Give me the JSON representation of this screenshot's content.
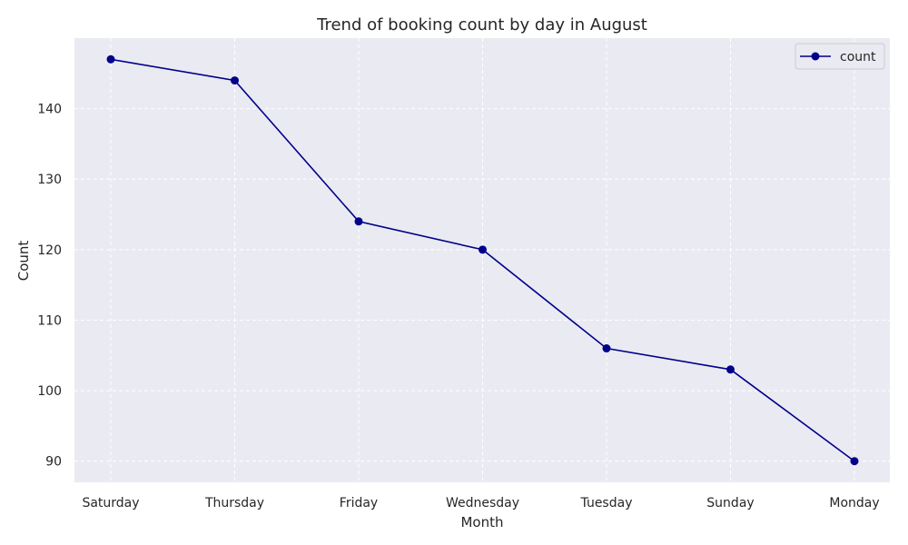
{
  "chart_data": {
    "type": "line",
    "title": "Trend of booking count by day in August",
    "xlabel": "Month",
    "ylabel": "Count",
    "categories": [
      "Saturday",
      "Thursday",
      "Friday",
      "Wednesday",
      "Tuesday",
      "Sunday",
      "Monday"
    ],
    "series": [
      {
        "name": "count",
        "values": [
          147,
          144,
          124,
          120,
          106,
          103,
          90
        ]
      }
    ],
    "ylim": [
      87,
      150
    ],
    "yticks": [
      90,
      100,
      110,
      120,
      130,
      140
    ],
    "grid": true,
    "grid_style": "dashed",
    "legend": "top-right",
    "colors": {
      "line": "#00008b",
      "plot_background": "#eaeaf2",
      "grid": "#ffffff",
      "text": "#262626"
    }
  }
}
